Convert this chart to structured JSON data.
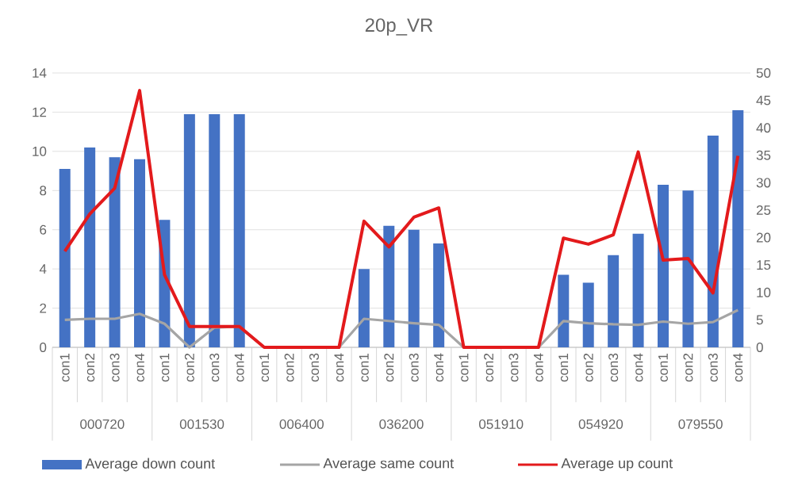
{
  "chart_data": {
    "type": "bar",
    "title": "20p_VR",
    "categories": [
      "con1",
      "con2",
      "con3",
      "con4",
      "con1",
      "con2",
      "con3",
      "con4",
      "con1",
      "con2",
      "con3",
      "con4",
      "con1",
      "con2",
      "con3",
      "con4",
      "con1",
      "con2",
      "con3",
      "con4",
      "con1",
      "con2",
      "con3",
      "con4",
      "con1",
      "con2",
      "con3",
      "con4"
    ],
    "annotations": [
      "000720",
      "001530",
      "006400",
      "036200",
      "051910",
      "054920",
      "079550"
    ],
    "series": [
      {
        "name": "Average down count",
        "color": "#4472c4",
        "values": [
          9.1,
          10.2,
          9.7,
          9.6,
          6.5,
          11.9,
          11.9,
          11.9,
          0,
          0,
          0,
          0,
          4.0,
          6.2,
          6.0,
          5.3,
          0,
          0,
          0,
          0,
          3.7,
          3.3,
          4.7,
          5.8,
          8.3,
          8.0,
          10.8,
          12.1
        ]
      },
      {
        "name": "Average same count",
        "color": "#a5a5a5",
        "type": "line",
        "axis": "y2",
        "values": [
          5.0,
          5.2,
          5.2,
          6.1,
          4.3,
          0,
          3.6,
          3.8,
          0,
          0,
          0,
          0,
          5.2,
          4.8,
          4.4,
          4.1,
          0,
          0,
          0,
          0,
          4.8,
          4.4,
          4.2,
          4.1,
          4.7,
          4.3,
          4.6,
          6.8
        ]
      },
      {
        "name": "Average up count",
        "color": "#e31a1c",
        "type": "line",
        "axis": "y2",
        "values": [
          17.5,
          24.3,
          29,
          46.8,
          13.2,
          3.8,
          3.8,
          3.8,
          0,
          0,
          0,
          0,
          23,
          18.3,
          23.7,
          25.4,
          0,
          0,
          0,
          0,
          19.9,
          18.8,
          20.5,
          35.6,
          15.9,
          16.2,
          9.9,
          34.9
        ]
      }
    ],
    "ylim": [
      0,
      14
    ],
    "yticks": [
      0,
      2,
      4,
      6,
      8,
      10,
      12,
      14
    ],
    "y2lim": [
      0,
      50
    ],
    "y2ticks": [
      0,
      5,
      10,
      15,
      20,
      25,
      30,
      35,
      40,
      45,
      50
    ],
    "grid": "y",
    "legend": "bottom"
  }
}
